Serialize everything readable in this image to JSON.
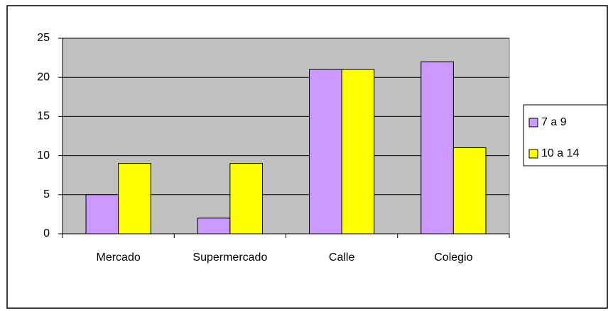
{
  "chart_data": {
    "type": "bar",
    "categories": [
      "Mercado",
      "Supermercado",
      "Calle",
      "Colegio"
    ],
    "series": [
      {
        "name": "7 a 9",
        "color": "#cc99ff",
        "values": [
          5,
          2,
          21,
          22
        ]
      },
      {
        "name": "10 a 14",
        "color": "#ffff00",
        "values": [
          9,
          9,
          21,
          11
        ]
      }
    ],
    "ylim": [
      0,
      25
    ],
    "yticks": [
      0,
      5,
      10,
      15,
      20,
      25
    ],
    "grid": true,
    "legend": "right"
  }
}
